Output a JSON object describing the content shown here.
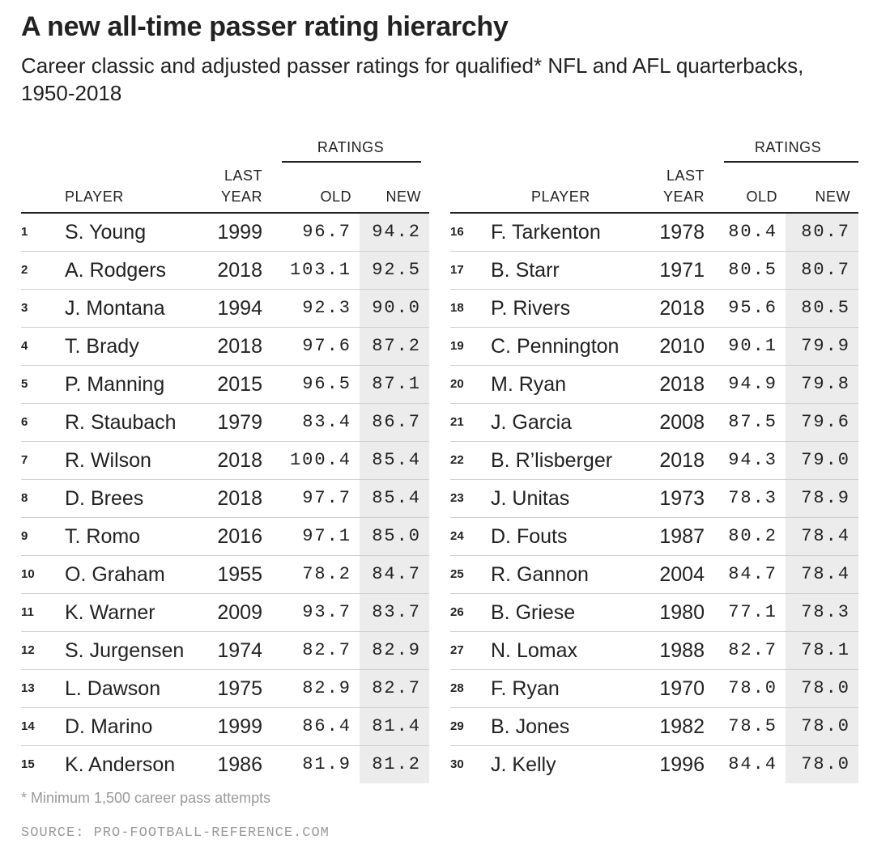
{
  "title": "A new all-time passer rating hierarchy",
  "subtitle": "Career classic and adjusted passer ratings for qualified* NFL and AFL quarterbacks, 1950-2018",
  "footnote": "* Minimum 1,500 career pass attempts",
  "source": "SOURCE: PRO-FOOTBALL-REFERENCE.COM",
  "colors": {
    "new_column_bg": "#ececec",
    "text": "#222222",
    "muted": "#9a9a9a",
    "row_rule": "#cfcfcf"
  },
  "chart_data": {
    "type": "table",
    "headers": {
      "group": "RATINGS",
      "player": "PLAYER",
      "last_year_line1": "LAST",
      "last_year_line2": "YEAR",
      "old": "OLD",
      "new": "NEW"
    },
    "left_rows": [
      {
        "rank": "1",
        "player": "S. Young",
        "last_year": "1999",
        "old": "96.7",
        "new": "94.2"
      },
      {
        "rank": "2",
        "player": "A. Rodgers",
        "last_year": "2018",
        "old": "103.1",
        "new": "92.5"
      },
      {
        "rank": "3",
        "player": "J. Montana",
        "last_year": "1994",
        "old": "92.3",
        "new": "90.0"
      },
      {
        "rank": "4",
        "player": "T. Brady",
        "last_year": "2018",
        "old": "97.6",
        "new": "87.2"
      },
      {
        "rank": "5",
        "player": "P. Manning",
        "last_year": "2015",
        "old": "96.5",
        "new": "87.1"
      },
      {
        "rank": "6",
        "player": "R. Staubach",
        "last_year": "1979",
        "old": "83.4",
        "new": "86.7"
      },
      {
        "rank": "7",
        "player": "R. Wilson",
        "last_year": "2018",
        "old": "100.4",
        "new": "85.4"
      },
      {
        "rank": "8",
        "player": "D. Brees",
        "last_year": "2018",
        "old": "97.7",
        "new": "85.4"
      },
      {
        "rank": "9",
        "player": "T. Romo",
        "last_year": "2016",
        "old": "97.1",
        "new": "85.0"
      },
      {
        "rank": "10",
        "player": "O. Graham",
        "last_year": "1955",
        "old": "78.2",
        "new": "84.7"
      },
      {
        "rank": "11",
        "player": "K. Warner",
        "last_year": "2009",
        "old": "93.7",
        "new": "83.7"
      },
      {
        "rank": "12",
        "player": "S. Jurgensen",
        "last_year": "1974",
        "old": "82.7",
        "new": "82.9"
      },
      {
        "rank": "13",
        "player": "L. Dawson",
        "last_year": "1975",
        "old": "82.9",
        "new": "82.7"
      },
      {
        "rank": "14",
        "player": "D. Marino",
        "last_year": "1999",
        "old": "86.4",
        "new": "81.4"
      },
      {
        "rank": "15",
        "player": "K. Anderson",
        "last_year": "1986",
        "old": "81.9",
        "new": "81.2"
      }
    ],
    "right_rows": [
      {
        "rank": "16",
        "player": "F. Tarkenton",
        "last_year": "1978",
        "old": "80.4",
        "new": "80.7"
      },
      {
        "rank": "17",
        "player": "B. Starr",
        "last_year": "1971",
        "old": "80.5",
        "new": "80.7"
      },
      {
        "rank": "18",
        "player": "P. Rivers",
        "last_year": "2018",
        "old": "95.6",
        "new": "80.5"
      },
      {
        "rank": "19",
        "player": "C. Pennington",
        "last_year": "2010",
        "old": "90.1",
        "new": "79.9"
      },
      {
        "rank": "20",
        "player": "M. Ryan",
        "last_year": "2018",
        "old": "94.9",
        "new": "79.8"
      },
      {
        "rank": "21",
        "player": "J. Garcia",
        "last_year": "2008",
        "old": "87.5",
        "new": "79.6"
      },
      {
        "rank": "22",
        "player": "B. R’lisberger",
        "last_year": "2018",
        "old": "94.3",
        "new": "79.0"
      },
      {
        "rank": "23",
        "player": "J. Unitas",
        "last_year": "1973",
        "old": "78.3",
        "new": "78.9"
      },
      {
        "rank": "24",
        "player": "D. Fouts",
        "last_year": "1987",
        "old": "80.2",
        "new": "78.4"
      },
      {
        "rank": "25",
        "player": "R. Gannon",
        "last_year": "2004",
        "old": "84.7",
        "new": "78.4"
      },
      {
        "rank": "26",
        "player": "B. Griese",
        "last_year": "1980",
        "old": "77.1",
        "new": "78.3"
      },
      {
        "rank": "27",
        "player": "N. Lomax",
        "last_year": "1988",
        "old": "82.7",
        "new": "78.1"
      },
      {
        "rank": "28",
        "player": "F. Ryan",
        "last_year": "1970",
        "old": "78.0",
        "new": "78.0"
      },
      {
        "rank": "29",
        "player": "B. Jones",
        "last_year": "1982",
        "old": "78.5",
        "new": "78.0"
      },
      {
        "rank": "30",
        "player": "J. Kelly",
        "last_year": "1996",
        "old": "84.4",
        "new": "78.0"
      }
    ]
  }
}
